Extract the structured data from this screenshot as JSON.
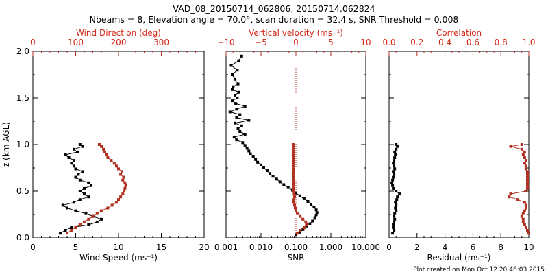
{
  "header": {
    "title_line1": "VAD_08_20150714_062806, 20150714.062824",
    "title_line2": "Nbeams = 8, Elevation angle = 70.0°, scan duration = 32.4 s, SNR Threshold = 0.008"
  },
  "footer": {
    "text": "Plot created on Mon Oct 12 20:46:03 2015"
  },
  "colors": {
    "series_black": "#000000",
    "series_red": "#b03020",
    "axis_red": "#d42a1a"
  },
  "chart_data": [
    {
      "type": "scatter",
      "title": "Wind Speed / Wind Direction",
      "ylabel": "z (km AGL)",
      "ylim": [
        0,
        2
      ],
      "yticks": [
        "0.0",
        "0.5",
        "1.0",
        "1.5",
        "2.0"
      ],
      "xlabel": "Wind Speed (ms⁻¹)",
      "xlim": [
        0,
        20
      ],
      "xticks": [
        "0",
        "5",
        "10",
        "15",
        "20"
      ],
      "x2label": "Wind Direction (deg)",
      "x2lim": [
        0,
        400
      ],
      "x2ticks": [
        "0",
        "100",
        "200",
        "300"
      ],
      "series": [
        {
          "name": "Wind Speed",
          "axis": "bottom",
          "color": "black",
          "z": [
            0.05,
            0.08,
            0.11,
            0.14,
            0.17,
            0.2,
            0.23,
            0.26,
            0.29,
            0.32,
            0.35,
            0.38,
            0.41,
            0.44,
            0.47,
            0.5,
            0.53,
            0.56,
            0.59,
            0.62,
            0.65,
            0.68,
            0.71,
            0.74,
            0.77,
            0.8,
            0.83,
            0.86,
            0.89,
            0.92,
            0.95,
            0.98,
            1.0
          ],
          "values": [
            3.2,
            3.8,
            4.5,
            6.5,
            7.5,
            8.0,
            7.0,
            6.2,
            5.0,
            4.0,
            3.5,
            4.8,
            5.5,
            6.5,
            6.0,
            5.5,
            6.0,
            6.8,
            6.5,
            5.5,
            5.0,
            5.3,
            5.8,
            5.0,
            4.8,
            4.5,
            4.8,
            4.2,
            3.8,
            5.2,
            4.8,
            5.8,
            5.5
          ]
        },
        {
          "name": "Wind Direction",
          "axis": "top",
          "color": "red",
          "z": [
            0.05,
            0.08,
            0.11,
            0.14,
            0.17,
            0.2,
            0.23,
            0.26,
            0.29,
            0.32,
            0.35,
            0.38,
            0.41,
            0.44,
            0.47,
            0.5,
            0.53,
            0.56,
            0.59,
            0.62,
            0.65,
            0.68,
            0.71,
            0.74,
            0.77,
            0.8,
            0.83,
            0.86,
            0.89,
            0.92,
            0.95,
            0.98,
            1.0
          ],
          "values": [
            80,
            90,
            100,
            110,
            120,
            130,
            140,
            150,
            160,
            175,
            185,
            195,
            200,
            205,
            210,
            213,
            215,
            217,
            215,
            210,
            212,
            205,
            208,
            200,
            195,
            190,
            183,
            175,
            172,
            168,
            165,
            160,
            155
          ]
        }
      ]
    },
    {
      "type": "scatter",
      "title": "SNR / Vertical velocity",
      "ylim": [
        0,
        2
      ],
      "xlabel": "SNR",
      "xscale": "log",
      "xlim": [
        0.001,
        10
      ],
      "xticks": [
        "0.001",
        "0.010",
        "0.100",
        "1.000",
        "10.000"
      ],
      "x2label": "Vertical velocity (ms⁻¹)",
      "x2lim": [
        -10,
        10
      ],
      "x2ticks": [
        "−10",
        "−5",
        "0",
        "5",
        "10"
      ],
      "reference_line": {
        "axis": "top",
        "value": 0,
        "style": "dotted"
      },
      "series": [
        {
          "name": "SNR",
          "axis": "bottom",
          "color": "black",
          "z": [
            0.03,
            0.06,
            0.09,
            0.12,
            0.15,
            0.18,
            0.21,
            0.24,
            0.27,
            0.3,
            0.33,
            0.36,
            0.39,
            0.42,
            0.45,
            0.48,
            0.51,
            0.54,
            0.57,
            0.6,
            0.63,
            0.66,
            0.69,
            0.72,
            0.75,
            0.78,
            0.81,
            0.84,
            0.87,
            0.9,
            0.93,
            0.96,
            0.99,
            1.02,
            1.05,
            1.08,
            1.11,
            1.14,
            1.17,
            1.2,
            1.23,
            1.26,
            1.29,
            1.32,
            1.35,
            1.38,
            1.41,
            1.44,
            1.47,
            1.5,
            1.53,
            1.56,
            1.59,
            1.62,
            1.65,
            1.7,
            1.75,
            1.8,
            1.85,
            1.9,
            1.95
          ],
          "values": [
            0.1,
            0.13,
            0.16,
            0.2,
            0.25,
            0.3,
            0.35,
            0.38,
            0.4,
            0.38,
            0.33,
            0.27,
            0.22,
            0.17,
            0.13,
            0.1,
            0.08,
            0.06,
            0.045,
            0.035,
            0.028,
            0.022,
            0.018,
            0.015,
            0.012,
            0.01,
            0.008,
            0.007,
            0.006,
            0.005,
            0.0045,
            0.004,
            0.0035,
            0.003,
            0.002,
            0.0017,
            0.0035,
            0.0025,
            0.0022,
            0.0028,
            0.0018,
            0.0045,
            0.002,
            0.0025,
            0.0013,
            0.002,
            0.0035,
            0.0019,
            0.0015,
            0.0021,
            0.0018,
            0.0023,
            0.0015,
            0.0016,
            0.0022,
            0.0018,
            0.0015,
            0.0021,
            0.0014,
            0.0023,
            0.0028
          ]
        },
        {
          "name": "Vertical velocity",
          "axis": "top",
          "color": "red",
          "z": [
            0.05,
            0.08,
            0.11,
            0.14,
            0.17,
            0.2,
            0.23,
            0.26,
            0.29,
            0.32,
            0.35,
            0.38,
            0.41,
            0.44,
            0.47,
            0.5,
            0.53,
            0.56,
            0.59,
            0.62,
            0.65,
            0.68,
            0.71,
            0.74,
            0.77,
            0.8,
            0.83,
            0.86,
            0.89,
            0.92,
            0.95,
            0.98,
            1.0
          ],
          "values": [
            0.2,
            0.6,
            1.2,
            1.5,
            1.4,
            1.0,
            0.6,
            0.2,
            0.0,
            -0.1,
            -0.2,
            -0.3,
            -0.3,
            -0.2,
            -0.25,
            -0.3,
            -0.3,
            -0.35,
            -0.35,
            -0.3,
            -0.35,
            -0.4,
            -0.3,
            -0.35,
            -0.4,
            -0.35,
            -0.3,
            -0.35,
            -0.4,
            -0.35,
            -0.4,
            -0.35,
            -0.4
          ]
        }
      ]
    },
    {
      "type": "scatter",
      "title": "Residual / Correlation",
      "ylim": [
        0,
        2
      ],
      "xlabel": "Residual (ms⁻¹)",
      "xlim": [
        0,
        10
      ],
      "xticks": [
        "0",
        "2",
        "4",
        "6",
        "8",
        "10"
      ],
      "x2label": "Correlation",
      "x2lim": [
        0,
        1
      ],
      "x2ticks": [
        "0.0",
        "0.2",
        "0.4",
        "0.6",
        "0.8",
        "1.0"
      ],
      "series": [
        {
          "name": "Residual",
          "axis": "bottom",
          "color": "black",
          "z": [
            0.05,
            0.08,
            0.11,
            0.14,
            0.17,
            0.2,
            0.23,
            0.26,
            0.29,
            0.32,
            0.35,
            0.38,
            0.41,
            0.44,
            0.47,
            0.5,
            0.53,
            0.56,
            0.59,
            0.62,
            0.65,
            0.68,
            0.71,
            0.74,
            0.77,
            0.8,
            0.83,
            0.86,
            0.89,
            0.92,
            0.95,
            0.98,
            1.0
          ],
          "values": [
            0.25,
            0.35,
            0.3,
            0.3,
            0.35,
            0.4,
            0.35,
            0.4,
            0.5,
            0.45,
            0.5,
            0.45,
            0.55,
            0.6,
            0.75,
            0.5,
            0.3,
            0.25,
            0.2,
            0.25,
            0.3,
            0.35,
            0.3,
            0.4,
            0.35,
            0.3,
            0.35,
            0.4,
            0.45,
            0.4,
            0.5,
            0.6,
            0.5
          ]
        },
        {
          "name": "Correlation",
          "axis": "top",
          "color": "red",
          "z": [
            0.05,
            0.08,
            0.11,
            0.14,
            0.17,
            0.2,
            0.23,
            0.26,
            0.29,
            0.32,
            0.35,
            0.38,
            0.41,
            0.44,
            0.47,
            0.5,
            0.53,
            0.56,
            0.59,
            0.62,
            0.65,
            0.68,
            0.71,
            0.74,
            0.77,
            0.8,
            0.83,
            0.86,
            0.89,
            0.92,
            0.95,
            0.98,
            1.0
          ],
          "values": [
            1.0,
            0.99,
            0.98,
            0.97,
            0.96,
            0.96,
            0.95,
            0.96,
            0.97,
            0.98,
            0.98,
            0.97,
            0.92,
            0.86,
            0.87,
            0.98,
            0.99,
            0.99,
            0.99,
            0.99,
            0.99,
            0.99,
            0.99,
            0.98,
            0.98,
            0.97,
            0.98,
            0.97,
            0.96,
            0.97,
            0.95,
            0.87,
            0.95
          ]
        }
      ]
    }
  ]
}
